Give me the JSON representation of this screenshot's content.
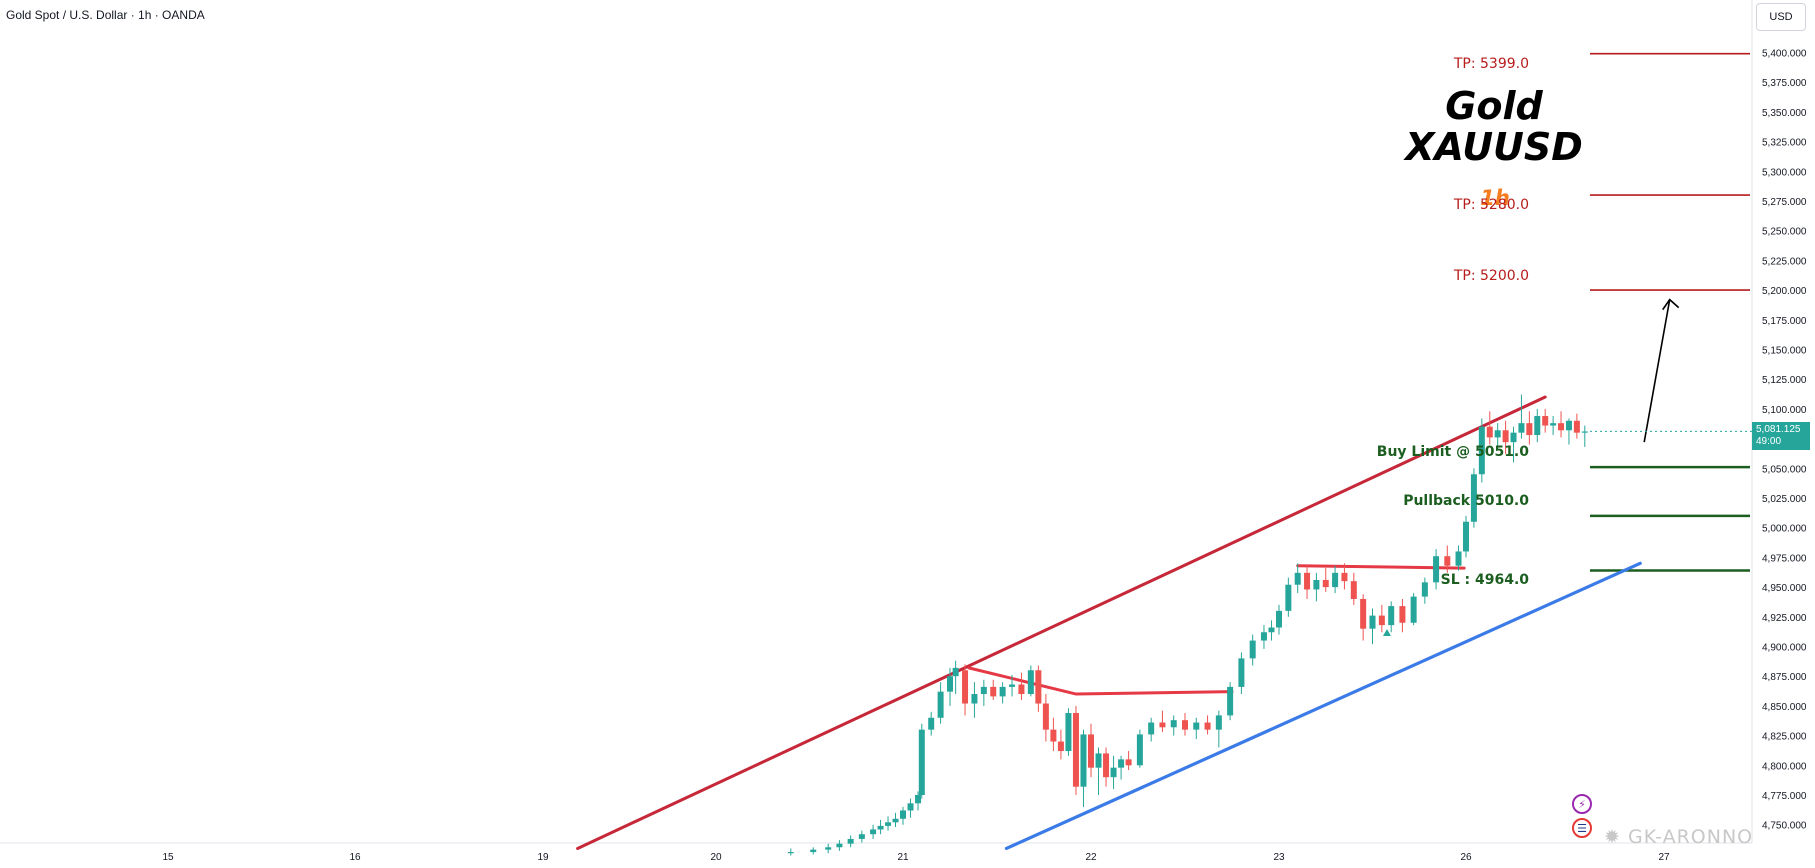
{
  "header": {
    "symbol_title": "Gold Spot / U.S. Dollar · 1h · OANDA",
    "currency": "USD"
  },
  "annotations": {
    "title_line1": "Gold",
    "title_line2": "XAUUSD",
    "timeframe": "1h",
    "tp3": "TP: 5399.0",
    "tp2": "TP: 5280.0",
    "tp1": "TP: 5200.0",
    "buy_limit": "Buy Limit @ 5051.0",
    "pullback": "Pullback 5010.0",
    "sl": "SL : 4964.0"
  },
  "price_badge": {
    "price": "5,081.125",
    "countdown": "49:00"
  },
  "watermark": "GK-ARONNO",
  "icons": [
    "lightning-icon",
    "us-flag-icon",
    "watermark-logo-icon"
  ],
  "colors": {
    "up": "#26a69a",
    "down": "#ef5350",
    "channel": "#c2185b",
    "support": "#2962ff",
    "tp": "#b71c1c",
    "entry": "#1b5e20",
    "timeframe": "#f57c1f"
  },
  "chart_data": {
    "type": "candlestick",
    "title": "Gold Spot / U.S. Dollar · 1h · OANDA",
    "x_tick_labels": [
      "15",
      "16",
      "19",
      "20",
      "21",
      "22",
      "23",
      "26",
      "27"
    ],
    "y_tick_labels": [
      "5,400.000",
      "5,375.000",
      "5,350.000",
      "5,325.000",
      "5,300.000",
      "5,275.000",
      "5,250.000",
      "5,225.000",
      "5,200.000",
      "5,175.000",
      "5,150.000",
      "5,125.000",
      "5,100.000",
      "5,075.000",
      "5,050.000",
      "5,025.000",
      "5,000.000",
      "4,975.000",
      "4,950.000",
      "4,925.000",
      "4,900.000",
      "4,875.000",
      "4,850.000",
      "4,825.000",
      "4,800.000",
      "4,775.000",
      "4,750.000"
    ],
    "ylim": [
      4730,
      5420
    ],
    "x_range": [
      14.5,
      27.3
    ],
    "grid": false,
    "levels": [
      {
        "name": "TP: 5399.0",
        "value": 5399.0
      },
      {
        "name": "TP: 5280.0",
        "value": 5280.0
      },
      {
        "name": "TP: 5200.0",
        "value": 5200.0
      },
      {
        "name": "Buy Limit @ 5051.0",
        "value": 5051.0
      },
      {
        "name": "Pullback 5010.0",
        "value": 5010.0
      },
      {
        "name": "SL : 4964.0",
        "value": 4964.0
      }
    ],
    "trendlines": [
      {
        "role": "upper-channel",
        "points": [
          [
            19.2,
            4730
          ],
          [
            26.4,
            5110
          ]
        ]
      },
      {
        "role": "lower-support",
        "points": [
          [
            21.55,
            4730
          ],
          [
            26.88,
            4970
          ]
        ]
      },
      {
        "role": "resistance",
        "points": [
          [
            21.35,
            4882
          ],
          [
            21.92,
            4860
          ],
          [
            22.75,
            4862
          ]
        ]
      },
      {
        "role": "resistance",
        "points": [
          [
            23.1,
            4968
          ],
          [
            25.95,
            4966
          ]
        ]
      }
    ],
    "arrow": {
      "from": [
        26.9,
        5072
      ],
      "to": [
        27.03,
        5192
      ]
    },
    "candles": [
      [
        20.4,
        4726,
        4730,
        4724,
        4727
      ],
      [
        20.52,
        4727,
        4731,
        4725,
        4729
      ],
      [
        20.6,
        4729,
        4734,
        4726,
        4731
      ],
      [
        20.66,
        4731,
        4737,
        4728,
        4734
      ],
      [
        20.72,
        4734,
        4741,
        4731,
        4738
      ],
      [
        20.78,
        4738,
        4745,
        4735,
        4742
      ],
      [
        20.84,
        4742,
        4750,
        4738,
        4746
      ],
      [
        20.88,
        4746,
        4754,
        4742,
        4749
      ],
      [
        20.92,
        4749,
        4757,
        4745,
        4752
      ],
      [
        20.96,
        4752,
        4760,
        4748,
        4755
      ],
      [
        21.0,
        4755,
        4765,
        4750,
        4762
      ],
      [
        21.04,
        4762,
        4772,
        4756,
        4768
      ],
      [
        21.08,
        4768,
        4778,
        4762,
        4775
      ],
      [
        21.1,
        4775,
        4835,
        4772,
        4830
      ],
      [
        21.15,
        4830,
        4845,
        4825,
        4840
      ],
      [
        21.2,
        4840,
        4870,
        4835,
        4862
      ],
      [
        21.25,
        4862,
        4882,
        4850,
        4875
      ],
      [
        21.28,
        4875,
        4888,
        4860,
        4882
      ],
      [
        21.33,
        4880,
        4885,
        4842,
        4852
      ],
      [
        21.38,
        4852,
        4870,
        4840,
        4860
      ],
      [
        21.43,
        4860,
        4872,
        4850,
        4866
      ],
      [
        21.48,
        4866,
        4872,
        4855,
        4858
      ],
      [
        21.53,
        4858,
        4870,
        4852,
        4866
      ],
      [
        21.58,
        4866,
        4876,
        4858,
        4868
      ],
      [
        21.63,
        4868,
        4878,
        4855,
        4860
      ],
      [
        21.68,
        4860,
        4884,
        4858,
        4880
      ],
      [
        21.72,
        4880,
        4884,
        4845,
        4852
      ],
      [
        21.76,
        4852,
        4860,
        4820,
        4830
      ],
      [
        21.8,
        4830,
        4840,
        4812,
        4820
      ],
      [
        21.84,
        4820,
        4830,
        4805,
        4812
      ],
      [
        21.88,
        4812,
        4848,
        4808,
        4844
      ],
      [
        21.92,
        4844,
        4850,
        4775,
        4782
      ],
      [
        21.96,
        4782,
        4830,
        4765,
        4826
      ],
      [
        22.0,
        4826,
        4835,
        4790,
        4798
      ],
      [
        22.04,
        4798,
        4815,
        4775,
        4810
      ],
      [
        22.08,
        4810,
        4815,
        4782,
        4790
      ],
      [
        22.12,
        4790,
        4808,
        4780,
        4798
      ],
      [
        22.16,
        4798,
        4808,
        4788,
        4805
      ],
      [
        22.2,
        4805,
        4812,
        4796,
        4800
      ],
      [
        22.26,
        4800,
        4830,
        4798,
        4826
      ],
      [
        22.32,
        4826,
        4840,
        4820,
        4836
      ],
      [
        22.38,
        4836,
        4846,
        4828,
        4832
      ],
      [
        22.44,
        4832,
        4842,
        4825,
        4838
      ],
      [
        22.5,
        4838,
        4844,
        4825,
        4830
      ],
      [
        22.56,
        4830,
        4840,
        4822,
        4836
      ],
      [
        22.62,
        4836,
        4842,
        4826,
        4830
      ],
      [
        22.68,
        4830,
        4846,
        4815,
        4842
      ],
      [
        22.74,
        4842,
        4870,
        4838,
        4866
      ],
      [
        22.8,
        4866,
        4895,
        4860,
        4890
      ],
      [
        22.86,
        4890,
        4910,
        4884,
        4905
      ],
      [
        22.92,
        4905,
        4918,
        4898,
        4912
      ],
      [
        22.96,
        4912,
        4922,
        4905,
        4916
      ],
      [
        23.0,
        4916,
        4935,
        4910,
        4930
      ],
      [
        23.05,
        4930,
        4958,
        4925,
        4952
      ],
      [
        23.1,
        4952,
        4970,
        4945,
        4962
      ],
      [
        23.15,
        4962,
        4968,
        4940,
        4948
      ],
      [
        23.2,
        4948,
        4962,
        4938,
        4956
      ],
      [
        23.25,
        4956,
        4966,
        4946,
        4950
      ],
      [
        23.3,
        4950,
        4968,
        4945,
        4962
      ],
      [
        23.35,
        4962,
        4970,
        4948,
        4955
      ],
      [
        23.4,
        4955,
        4962,
        4935,
        4940
      ],
      [
        23.45,
        4940,
        4944,
        4905,
        4915
      ],
      [
        23.5,
        4915,
        4932,
        4902,
        4926
      ],
      [
        23.55,
        4926,
        4935,
        4912,
        4918
      ],
      [
        23.6,
        4918,
        4938,
        4912,
        4934
      ],
      [
        23.66,
        4934,
        4940,
        4912,
        4920
      ],
      [
        23.72,
        4920,
        4945,
        4918,
        4942
      ],
      [
        23.78,
        4942,
        4958,
        4936,
        4954
      ],
      [
        23.84,
        4954,
        4982,
        4948,
        4976
      ],
      [
        23.9,
        4976,
        4985,
        4962,
        4968
      ],
      [
        23.96,
        4968,
        4985,
        4964,
        4980
      ],
      [
        25.0,
        4980,
        5010,
        4975,
        5005
      ],
      [
        25.04,
        5005,
        5050,
        5000,
        5045
      ],
      [
        25.08,
        5045,
        5092,
        5038,
        5085
      ],
      [
        25.12,
        5085,
        5098,
        5070,
        5076
      ],
      [
        25.16,
        5076,
        5088,
        5065,
        5082
      ],
      [
        25.2,
        5082,
        5090,
        5062,
        5072
      ],
      [
        25.24,
        5072,
        5085,
        5055,
        5080
      ],
      [
        25.28,
        5080,
        5112,
        5075,
        5088
      ],
      [
        25.32,
        5088,
        5098,
        5070,
        5078
      ],
      [
        25.36,
        5078,
        5100,
        5072,
        5094
      ],
      [
        25.4,
        5094,
        5100,
        5080,
        5086
      ],
      [
        25.44,
        5086,
        5094,
        5078,
        5088
      ],
      [
        25.48,
        5088,
        5098,
        5076,
        5082
      ],
      [
        25.52,
        5082,
        5092,
        5070,
        5090
      ],
      [
        25.56,
        5090,
        5096,
        5075,
        5080
      ],
      [
        25.6,
        5080,
        5086,
        5068,
        5081
      ]
    ]
  }
}
